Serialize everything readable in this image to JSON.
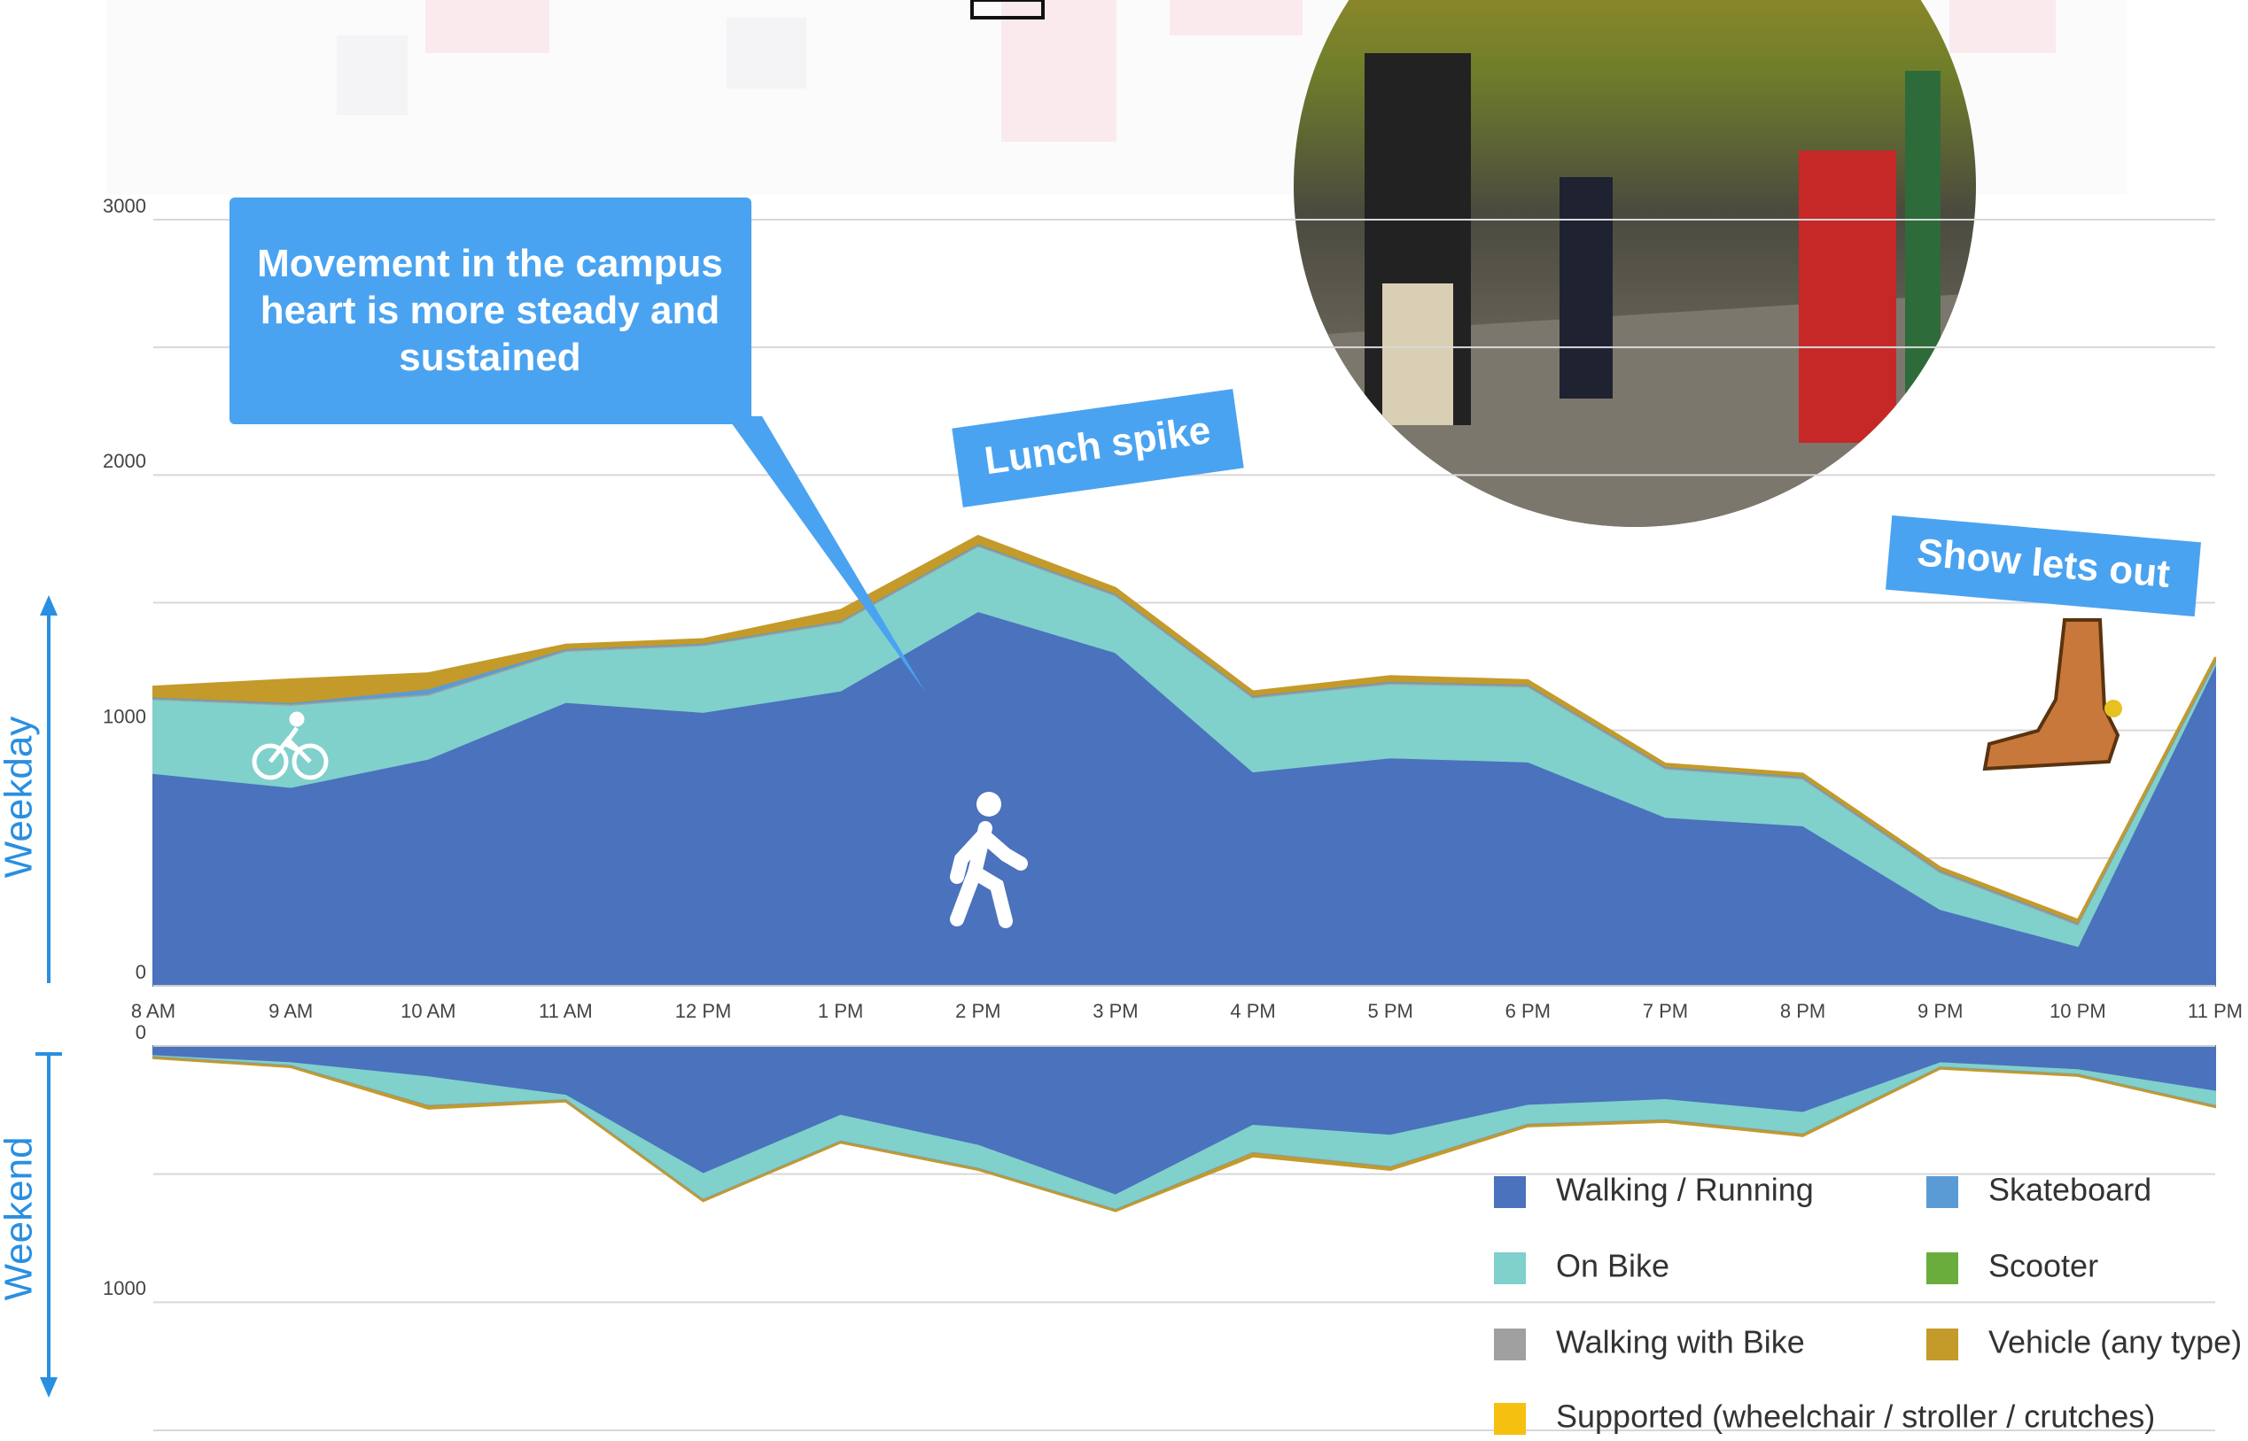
{
  "chart_data": [
    {
      "type": "area",
      "stacked": true,
      "categories": [
        "8 AM",
        "9 AM",
        "10 AM",
        "11 AM",
        "12 PM",
        "1 PM",
        "2 PM",
        "3 PM",
        "4 PM",
        "5 PM",
        "6 PM",
        "7 PM",
        "8 PM",
        "9 PM",
        "10 PM",
        "11 PM"
      ],
      "ylim": [
        0,
        3000
      ],
      "yticks": [
        0,
        1000,
        2000,
        3000
      ],
      "minor_yticks": [
        500,
        1500,
        2500
      ],
      "grid": true,
      "axis_label": "Weekday",
      "annotations": [
        "Movement in the campus heart is more steady and sustained",
        "Lunch spike",
        "Show lets out"
      ],
      "series": [
        {
          "name": "Walking / Running",
          "color": "#4a72bd",
          "values": [
            833,
            778,
            889,
            1111,
            1072,
            1156,
            1467,
            1306,
            839,
            894,
            878,
            661,
            628,
            300,
            156,
            1256
          ]
        },
        {
          "name": "On Bike",
          "color": "#80d0cc",
          "values": [
            289,
            322,
            250,
            200,
            261,
            266,
            255,
            222,
            289,
            289,
            294,
            189,
            183,
            144,
            83,
            11
          ]
        },
        {
          "name": "Walking with Bike",
          "color": "#a0a0a0",
          "values": [
            5,
            5,
            5,
            5,
            5,
            5,
            5,
            5,
            5,
            5,
            5,
            5,
            5,
            5,
            5,
            5
          ]
        },
        {
          "name": "Supported (wheelchair / stroller / crutches)",
          "color": "#f5c010",
          "values": [
            0,
            0,
            0,
            0,
            0,
            0,
            0,
            0,
            0,
            0,
            0,
            0,
            0,
            0,
            0,
            0
          ]
        },
        {
          "name": "Skateboard",
          "color": "#5b9bd5",
          "values": [
            5,
            5,
            20,
            5,
            5,
            5,
            5,
            5,
            5,
            5,
            5,
            5,
            5,
            5,
            5,
            5
          ]
        },
        {
          "name": "Scooter",
          "color": "#6aad3d",
          "values": [
            0,
            0,
            0,
            0,
            0,
            0,
            0,
            0,
            0,
            0,
            0,
            0,
            0,
            0,
            0,
            0
          ]
        },
        {
          "name": "Vehicle (any type)",
          "color": "#c49a2a",
          "values": [
            40,
            90,
            60,
            15,
            15,
            40,
            30,
            20,
            15,
            20,
            15,
            10,
            10,
            10,
            10,
            10
          ]
        }
      ]
    },
    {
      "type": "area",
      "stacked": true,
      "y_inverted": true,
      "ylim": [
        0,
        1500
      ],
      "yticks": [
        0,
        1000
      ],
      "minor_yticks": [
        500,
        1500
      ],
      "grid": true,
      "axis_label": "Weekend",
      "legend": "lower right",
      "series": [
        {
          "name": "Walking / Running",
          "color": "#4a72bd",
          "values": [
            39,
            67,
            122,
            194,
            500,
            272,
            389,
            583,
            311,
            350,
            233,
            211,
            261,
            67,
            94,
            178
          ]
        },
        {
          "name": "On Bike",
          "color": "#80d0cc",
          "values": [
            3,
            10,
            111,
            17,
            100,
            100,
            89,
            56,
            106,
            122,
            73,
            78,
            83,
            16,
            17,
            55
          ]
        },
        {
          "name": "Walking with Bike",
          "color": "#a0a0a0",
          "values": [
            2,
            2,
            2,
            2,
            2,
            2,
            2,
            2,
            2,
            2,
            2,
            2,
            2,
            2,
            2,
            2
          ]
        },
        {
          "name": "Supported (wheelchair / stroller / crutches)",
          "color": "#f5c010",
          "values": [
            0,
            0,
            0,
            0,
            0,
            0,
            0,
            0,
            0,
            0,
            0,
            0,
            0,
            0,
            0,
            0
          ]
        },
        {
          "name": "Skateboard",
          "color": "#5b9bd5",
          "values": [
            2,
            2,
            2,
            2,
            2,
            2,
            2,
            2,
            2,
            2,
            2,
            2,
            2,
            2,
            2,
            2
          ]
        },
        {
          "name": "Scooter",
          "color": "#6aad3d",
          "values": [
            0,
            0,
            0,
            0,
            0,
            0,
            0,
            0,
            0,
            0,
            0,
            0,
            0,
            0,
            0,
            0
          ]
        },
        {
          "name": "Vehicle (any type)",
          "color": "#c49a2a",
          "values": [
            2,
            2,
            8,
            2,
            2,
            2,
            2,
            2,
            10,
            8,
            4,
            4,
            4,
            2,
            2,
            2
          ]
        }
      ]
    }
  ]
}
